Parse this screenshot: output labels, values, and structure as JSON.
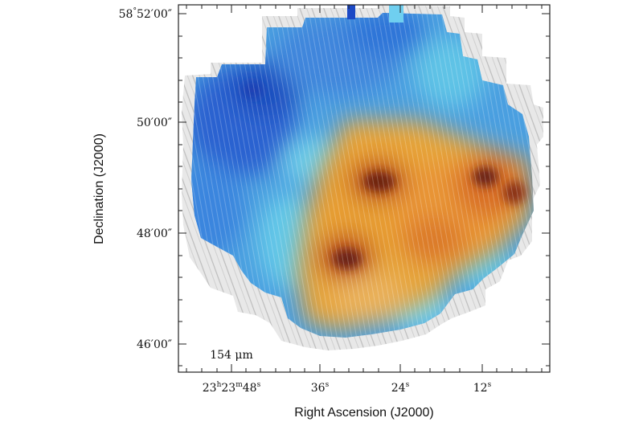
{
  "image": {
    "description_hidden": false
  },
  "axes": {
    "ylabel": "Declination (J2000)",
    "xlabel": "Right Ascension (J2000)",
    "y_ticks": [
      {
        "id": "dec-58-52",
        "deg": "58",
        "deg_sym": "°",
        "rest": "52′00″"
      },
      {
        "id": "dec-50",
        "rest": "50′00″"
      },
      {
        "id": "dec-48",
        "rest": "48′00″"
      },
      {
        "id": "dec-46",
        "rest": "46′00″"
      }
    ],
    "x_ticks": [
      {
        "id": "ra-48",
        "h": "23",
        "hs": "h",
        "m": "23",
        "ms": "m",
        "s": "48",
        "ss": "s"
      },
      {
        "id": "ra-36",
        "s": "36",
        "ss": "s"
      },
      {
        "id": "ra-24",
        "s": "24",
        "ss": "s"
      },
      {
        "id": "ra-12",
        "s": "12",
        "ss": "s"
      }
    ]
  },
  "annotation": {
    "wavelength": "154 μm"
  },
  "colors": {
    "frame": "#222222",
    "low_intensity": "#2b6fd6",
    "mid_intensity": "#5ec8e8",
    "high_intensity": "#e9a531",
    "peak_intensity": "#8b2b12",
    "streamline": "#d9d9d9"
  }
}
